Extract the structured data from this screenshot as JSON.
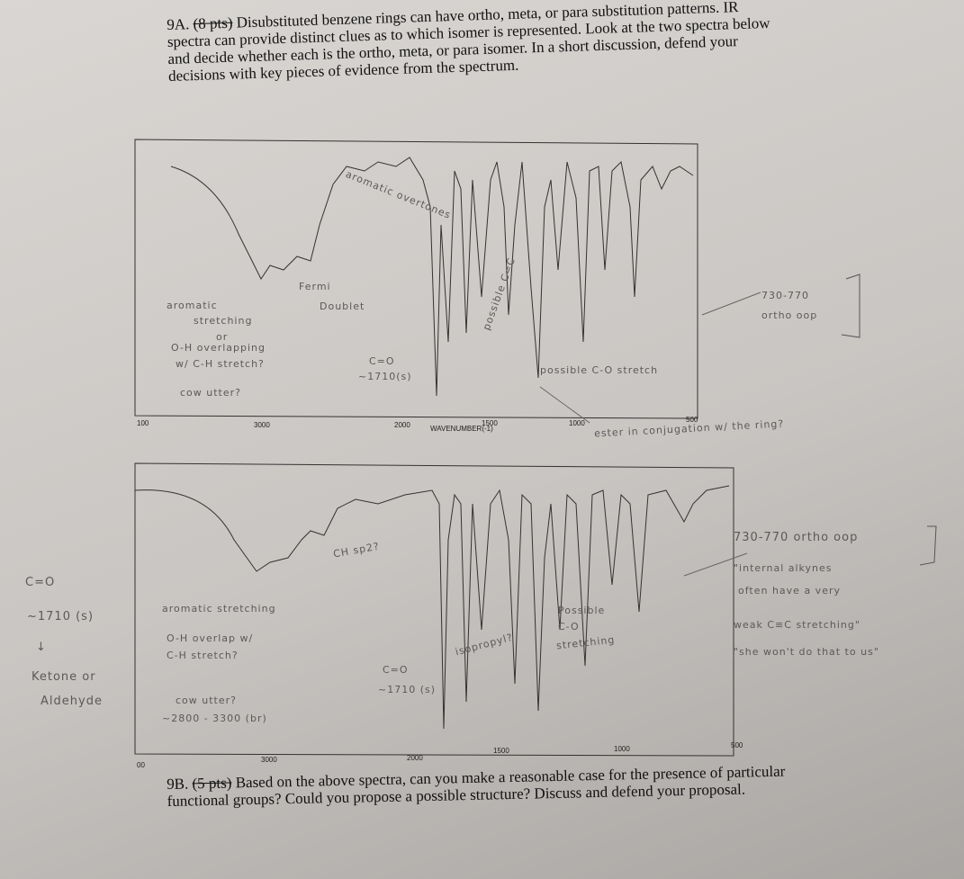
{
  "question_9a": {
    "number": "9A.",
    "points": "(8 pts)",
    "text": "Disubstituted benzene rings can have ortho, meta, or para substitution patterns. IR spectra can provide distinct clues as to which isomer is represented. Look at the two spectra below and decide whether each is the ortho, meta, or para isomer. In a short discussion, defend your decisions with key pieces of evidence from the spectrum."
  },
  "spectra": [
    {
      "ticks": [
        "100",
        "3000",
        "2000",
        "WAVENUMBER(-1)",
        "1500",
        "1000",
        "500"
      ],
      "annotations": [
        "aromatic overtones",
        "Fermi",
        "Doublet",
        "aromatic",
        "stretching",
        "or",
        "O-H overlapping",
        "w/ C-H stretch?",
        "cow utter?",
        "possible C=C",
        "C=O",
        "~1710(s)",
        "possible C-O stretch",
        "730-770",
        "ortho oop",
        "ester in conjugation w/ the ring?"
      ]
    },
    {
      "ticks": [
        "00",
        "3000",
        "2000",
        "1500",
        "1000",
        "500"
      ],
      "annotations": [
        "CH sp2?",
        "aromatic stretching",
        "O-H overlap w/",
        "C-H stretch?",
        "cow utter?",
        "~2800 - 3300 (br)",
        "C=O",
        "~1710 (s)",
        "isopropyl?",
        "Possible",
        "C-O",
        "stretching",
        "730-770 ortho oop",
        "\"internal alkynes",
        "often have a very",
        "weak C≡C stretching\"",
        "\"she won't do that to us\""
      ]
    }
  ],
  "margin_note": [
    "C=O",
    "~1710 (s)",
    "↓",
    "Ketone or",
    "Aldehyde"
  ],
  "question_9b": {
    "number": "9B.",
    "points": "(5 pts)",
    "text": "Based on the above spectra, can you make a reasonable case for the presence of particular functional groups? Could you propose a possible structure? Discuss and defend your proposal."
  }
}
